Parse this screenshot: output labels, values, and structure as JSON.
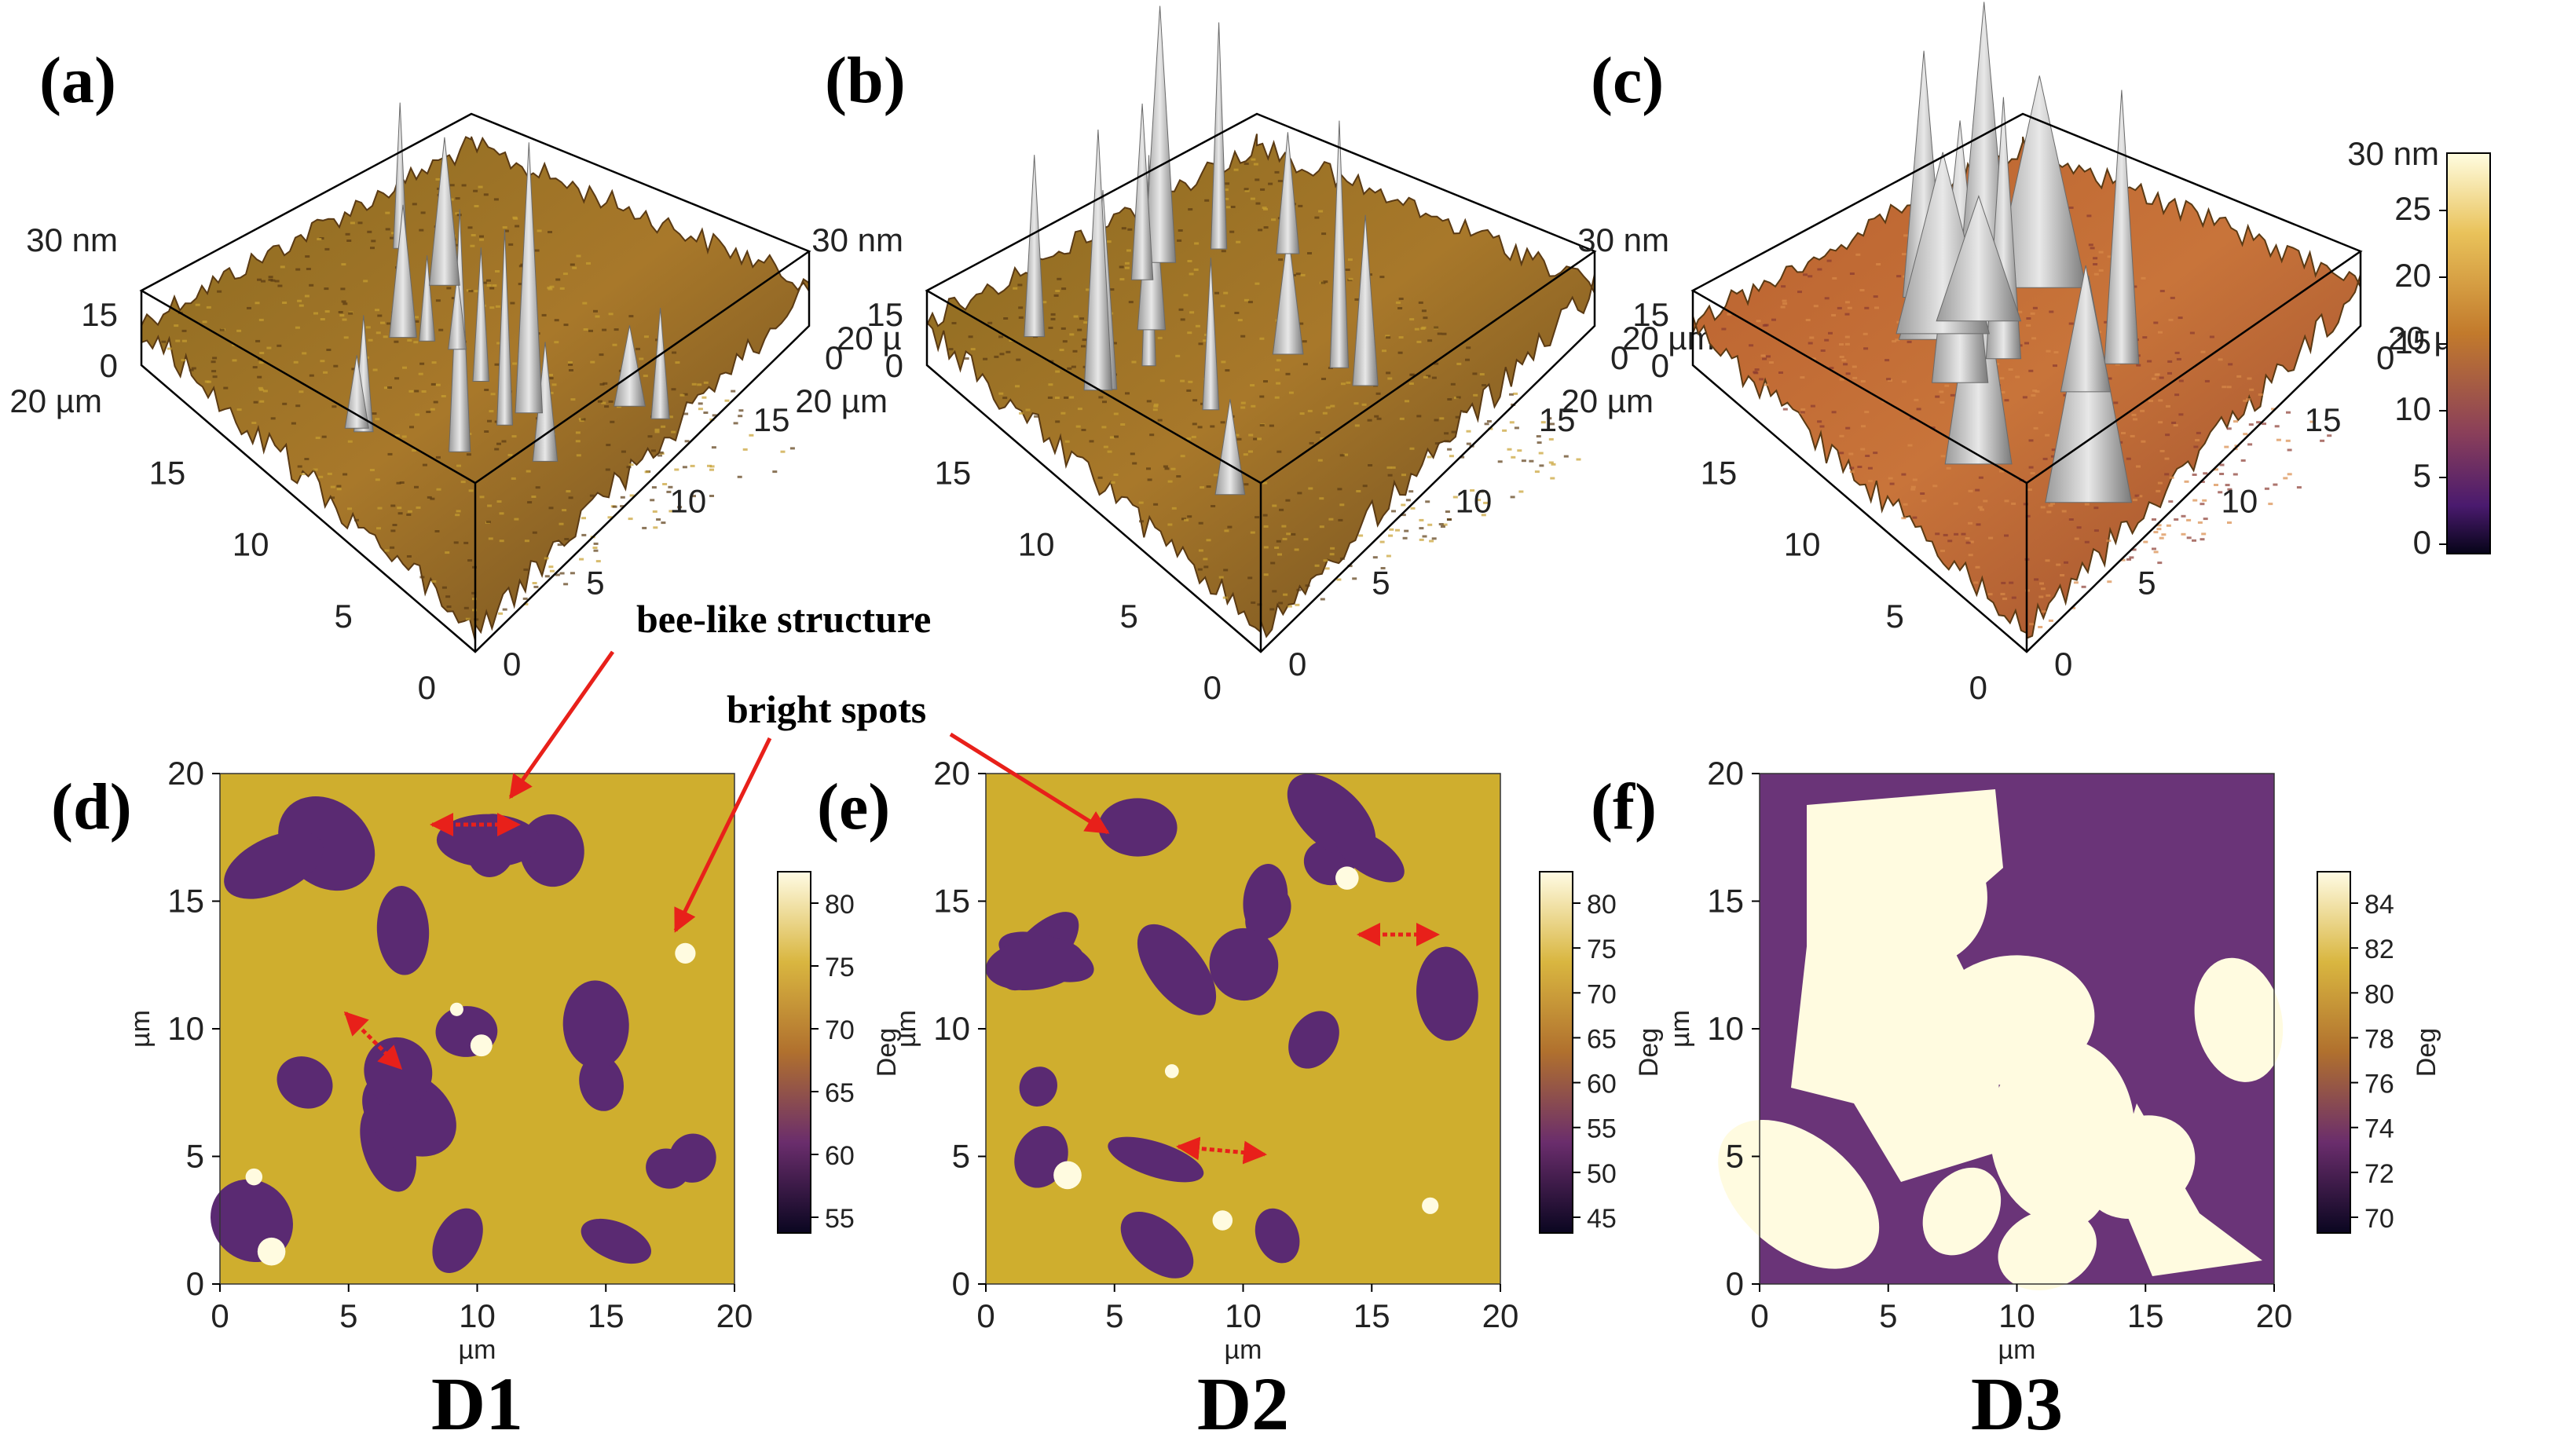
{
  "panels_3d": [
    {
      "label": "(a)",
      "z_tick_labels": [
        "0",
        "15",
        "30 nm"
      ],
      "left_axis_labels": [
        "0",
        "5",
        "10",
        "15",
        "20 µm"
      ],
      "right_axis_labels": [
        "0",
        "5",
        "10",
        "15",
        "20 µ"
      ],
      "origin_labels": [
        "0",
        "0",
        "0"
      ]
    },
    {
      "label": "(b)",
      "z_tick_labels": [
        "0",
        "15",
        "30 nm"
      ],
      "left_axis_labels": [
        "0",
        "5",
        "10",
        "15",
        "20 µm"
      ],
      "right_axis_labels": [
        "0",
        "5",
        "10",
        "15",
        "20 µm"
      ],
      "origin_labels": [
        "0",
        "0",
        "0"
      ]
    },
    {
      "label": "(c)",
      "z_tick_labels": [
        "0",
        "15",
        "30 nm"
      ],
      "left_axis_labels": [
        "0",
        "5",
        "10",
        "15",
        "20 µm"
      ],
      "right_axis_labels": [
        "0",
        "5",
        "10",
        "15",
        "20 µm"
      ],
      "origin_labels": [
        "0",
        "0",
        "0"
      ]
    }
  ],
  "height_colorbar": {
    "top_label": "30 nm",
    "ticks": [
      "25",
      "20",
      "15",
      "10",
      "5",
      "0"
    ],
    "colors": [
      "#fffde0",
      "#e9c25a",
      "#c27a2c",
      "#8a3f5a",
      "#4a1a6e",
      "#060418"
    ]
  },
  "panels_2d": [
    {
      "label": "(d)",
      "sample": "D1",
      "x_ticks": [
        "0",
        "5",
        "10",
        "15",
        "20"
      ],
      "y_ticks": [
        "0",
        "5",
        "10",
        "15",
        "20"
      ],
      "x_unit": "µm",
      "y_unit": "µm",
      "colorbar": {
        "ticks": [
          "80",
          "75",
          "70",
          "65",
          "60",
          "55"
        ],
        "unit": "Deg"
      }
    },
    {
      "label": "(e)",
      "sample": "D2",
      "x_ticks": [
        "0",
        "5",
        "10",
        "15",
        "20"
      ],
      "y_ticks": [
        "0",
        "5",
        "10",
        "15",
        "20"
      ],
      "x_unit": "µm",
      "y_unit": "µm",
      "colorbar": {
        "ticks": [
          "80",
          "75",
          "70",
          "65",
          "60",
          "55",
          "50",
          "45"
        ],
        "unit": "Deg"
      }
    },
    {
      "label": "(f)",
      "sample": "D3",
      "x_ticks": [
        "0",
        "5",
        "10",
        "15",
        "20"
      ],
      "y_ticks": [
        "0",
        "5",
        "10",
        "15",
        "20"
      ],
      "x_unit": "µm",
      "y_unit": "µm",
      "colorbar": {
        "ticks": [
          "84",
          "82",
          "80",
          "78",
          "76",
          "74",
          "72",
          "70"
        ],
        "unit": "Deg"
      }
    }
  ],
  "annotations": {
    "bee_like": "bee-like structure",
    "bright_spots": "bright spots",
    "arrow_color": "#e8201a"
  },
  "phase_colors": {
    "matrix": "#cfae2e",
    "domain": "#5a2a72",
    "bright": "#fffbe0"
  }
}
